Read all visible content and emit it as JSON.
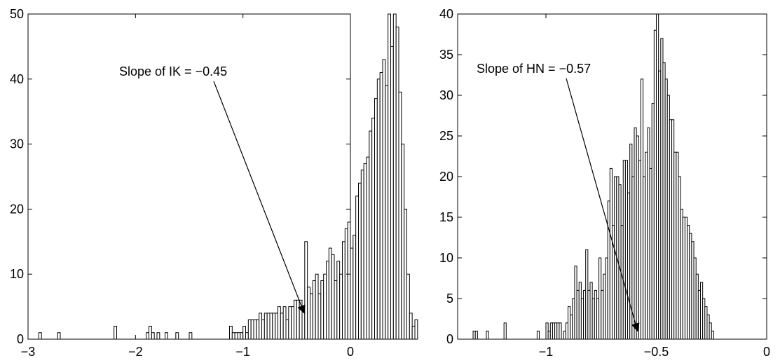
{
  "chart_data": [
    {
      "type": "bar",
      "title": "",
      "xlabel": "",
      "ylabel": "",
      "xlim": [
        -3,
        0
      ],
      "ylim": [
        0,
        50
      ],
      "xticks": [
        -3,
        -2,
        -1,
        0
      ],
      "xtick_labels": [
        "−3",
        "−2",
        "−1",
        "0"
      ],
      "yticks": [
        0,
        10,
        20,
        30,
        40,
        50
      ],
      "ytick_labels": [
        "0",
        "10",
        "20",
        "30",
        "40",
        "50"
      ],
      "grid": false,
      "bar_fill": "#ffffff",
      "bar_stroke": "#000000",
      "bins": {
        "x_start": -2.9,
        "width": 0.025,
        "counts": [
          1,
          0,
          0,
          0,
          0,
          0,
          0,
          1,
          0,
          0,
          0,
          0,
          0,
          0,
          0,
          0,
          0,
          0,
          0,
          0,
          0,
          0,
          0,
          0,
          0,
          0,
          0,
          0,
          2,
          0,
          0,
          0,
          0,
          0,
          0,
          0,
          0,
          0,
          0,
          0,
          1,
          2,
          1,
          0,
          1,
          0,
          0,
          1,
          0,
          0,
          0,
          1,
          0,
          0,
          0,
          0,
          1,
          0,
          0,
          0,
          0,
          0,
          0,
          0,
          0,
          0,
          0,
          0,
          0,
          0,
          0,
          2,
          1,
          1,
          1,
          1,
          2,
          1,
          3,
          3,
          3,
          3,
          4,
          3,
          4,
          4,
          4,
          4,
          4,
          5,
          4,
          5,
          3,
          5,
          5,
          6,
          6,
          6,
          5,
          15,
          8,
          7,
          9,
          10,
          7,
          9,
          10,
          12,
          14,
          13,
          9,
          12,
          10,
          15,
          17,
          18,
          14,
          16,
          22,
          24,
          26,
          27,
          28,
          32,
          34,
          37,
          40,
          41,
          43,
          39,
          50,
          45,
          50,
          48,
          38,
          30,
          20,
          10,
          4,
          2,
          3
        ]
      },
      "annotation": {
        "text": "Slope of IK = −0.45",
        "target_x": -0.43,
        "target_y": 4
      }
    },
    {
      "type": "bar",
      "title": "",
      "xlabel": "",
      "ylabel": "",
      "xlim": [
        -1.4,
        0
      ],
      "ylim": [
        0,
        40
      ],
      "xticks": [
        -1,
        -0.5,
        0
      ],
      "xtick_labels": [
        "−1",
        "−0.5",
        "0"
      ],
      "yticks": [
        0,
        5,
        10,
        15,
        20,
        25,
        30,
        35,
        40
      ],
      "ytick_labels": [
        "0",
        "5",
        "10",
        "15",
        "20",
        "25",
        "30",
        "35",
        "40"
      ],
      "grid": false,
      "bar_fill": "#ffffff",
      "bar_stroke": "#000000",
      "bins": {
        "x_start": -1.33,
        "width": 0.01,
        "counts": [
          1,
          1,
          0,
          0,
          0,
          0,
          1,
          0,
          0,
          0,
          0,
          0,
          0,
          0,
          2,
          0,
          0,
          0,
          0,
          0,
          0,
          0,
          0,
          0,
          0,
          0,
          0,
          0,
          0,
          1,
          0,
          0,
          0,
          2,
          1,
          2,
          2,
          2,
          2,
          2,
          0,
          1,
          2,
          4,
          3,
          5,
          9,
          6,
          7,
          5,
          6,
          11,
          6,
          7,
          5,
          6,
          5,
          10,
          6,
          8,
          10,
          17,
          21,
          14,
          20,
          20,
          19,
          14,
          22,
          22,
          18,
          24,
          20,
          26,
          25,
          22,
          32,
          20,
          23,
          26,
          21,
          29,
          38,
          40,
          33,
          37,
          34,
          32,
          30,
          27,
          27,
          23,
          23,
          20,
          16,
          15,
          15,
          14,
          13,
          12,
          10,
          8,
          6,
          7,
          5,
          4,
          3,
          2,
          1
        ]
      },
      "annotation": {
        "text": "Slope of HN = −0.57",
        "target_x": -0.585,
        "target_y": 1
      }
    }
  ]
}
